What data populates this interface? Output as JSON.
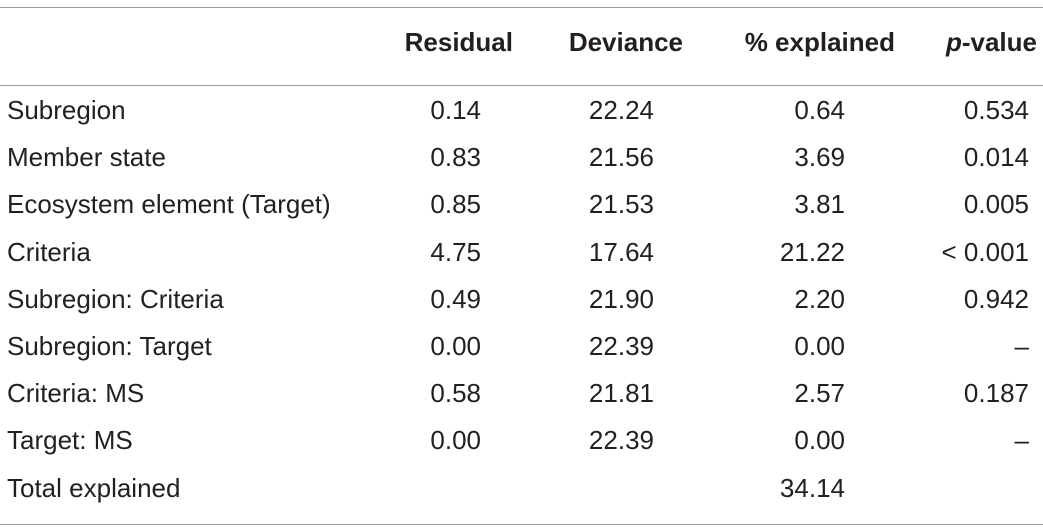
{
  "table": {
    "headers": {
      "label": "",
      "residual": "Residual",
      "deviance": "Deviance",
      "pct_explained": "% explained",
      "p_value_italic": "p",
      "p_value_rest": "-value"
    },
    "rows": [
      {
        "label": "Subregion",
        "residual": "0.14",
        "deviance": "22.24",
        "pct_explained": "0.64",
        "p_value": "0.534"
      },
      {
        "label": "Member state",
        "residual": "0.83",
        "deviance": "21.56",
        "pct_explained": "3.69",
        "p_value": "0.014"
      },
      {
        "label": "Ecosystem element (Target)",
        "residual": "0.85",
        "deviance": "21.53",
        "pct_explained": "3.81",
        "p_value": "0.005"
      },
      {
        "label": "Criteria",
        "residual": "4.75",
        "deviance": "17.64",
        "pct_explained": "21.22",
        "p_value": "< 0.001"
      },
      {
        "label": "Subregion: Criteria",
        "residual": "0.49",
        "deviance": "21.90",
        "pct_explained": "2.20",
        "p_value": "0.942"
      },
      {
        "label": "Subregion: Target",
        "residual": "0.00",
        "deviance": "22.39",
        "pct_explained": "0.00",
        "p_value": "–"
      },
      {
        "label": "Criteria: MS",
        "residual": "0.58",
        "deviance": "21.81",
        "pct_explained": "2.57",
        "p_value": "0.187"
      },
      {
        "label": "Target: MS",
        "residual": "0.00",
        "deviance": "22.39",
        "pct_explained": "0.00",
        "p_value": "–"
      },
      {
        "label": "Total explained",
        "residual": "",
        "deviance": "",
        "pct_explained": "34.14",
        "p_value": ""
      }
    ]
  }
}
